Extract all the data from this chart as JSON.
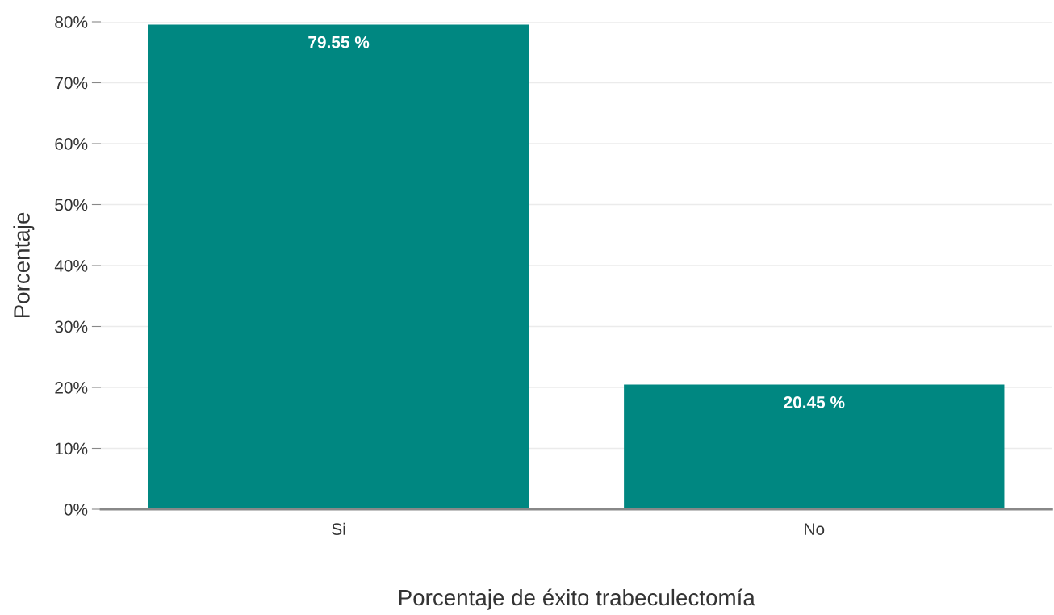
{
  "chart_data": {
    "type": "bar",
    "xlabel": "Porcentaje de éxito trabeculectomía",
    "ylabel": "Porcentaje",
    "categories": [
      "Si",
      "No"
    ],
    "values": [
      79.55,
      20.45
    ],
    "color": "#008781",
    "value_labels": [
      "79.55 %",
      "20.45 %"
    ],
    "ylim": [
      0,
      80
    ],
    "yticks": [
      {
        "value": 0,
        "label": "0%"
      },
      {
        "value": 10,
        "label": "10%"
      },
      {
        "value": 20,
        "label": "20%"
      },
      {
        "value": 30,
        "label": "30%"
      },
      {
        "value": 40,
        "label": "40%"
      },
      {
        "value": 50,
        "label": "50%"
      },
      {
        "value": 60,
        "label": "60%"
      },
      {
        "value": 70,
        "label": "70%"
      },
      {
        "value": 80,
        "label": "80%"
      }
    ],
    "grid": "y"
  }
}
